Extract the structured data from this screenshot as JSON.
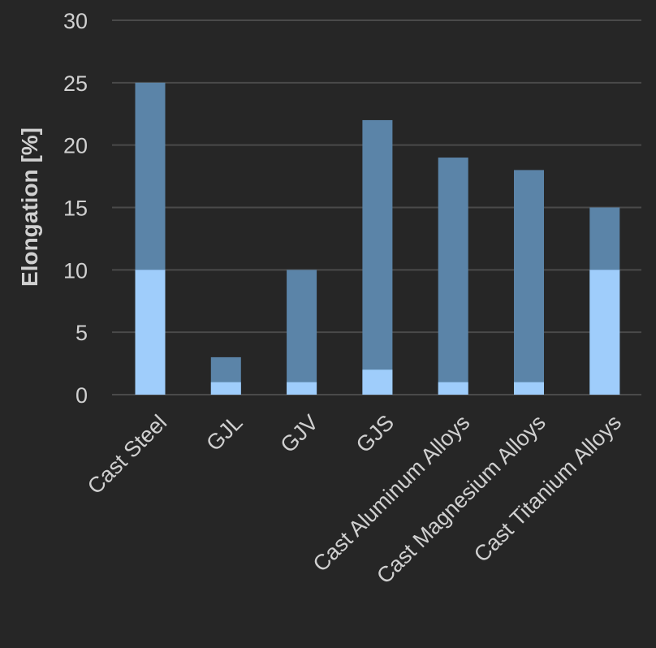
{
  "chart_data": {
    "type": "bar",
    "stacked": false,
    "categories": [
      "Cast Steel",
      "GJL",
      "GJV",
      "GJS",
      "Cast Aluminum Alloys",
      "Cast Magnesium Alloys",
      "Cast Titanium Alloys"
    ],
    "series": [
      {
        "values": [
          25,
          3,
          10,
          22,
          19,
          18,
          15
        ],
        "color": "#5b84a8"
      },
      {
        "values": [
          10,
          1,
          1,
          2,
          1,
          1,
          10
        ],
        "color": "#9fcdfb"
      }
    ],
    "ylabel": "Elongation [%]",
    "xlabel": "",
    "ylim": [
      0,
      30
    ],
    "yticks": [
      0,
      5,
      10,
      15,
      20,
      25,
      30
    ],
    "grid": true,
    "background": "#262626"
  }
}
